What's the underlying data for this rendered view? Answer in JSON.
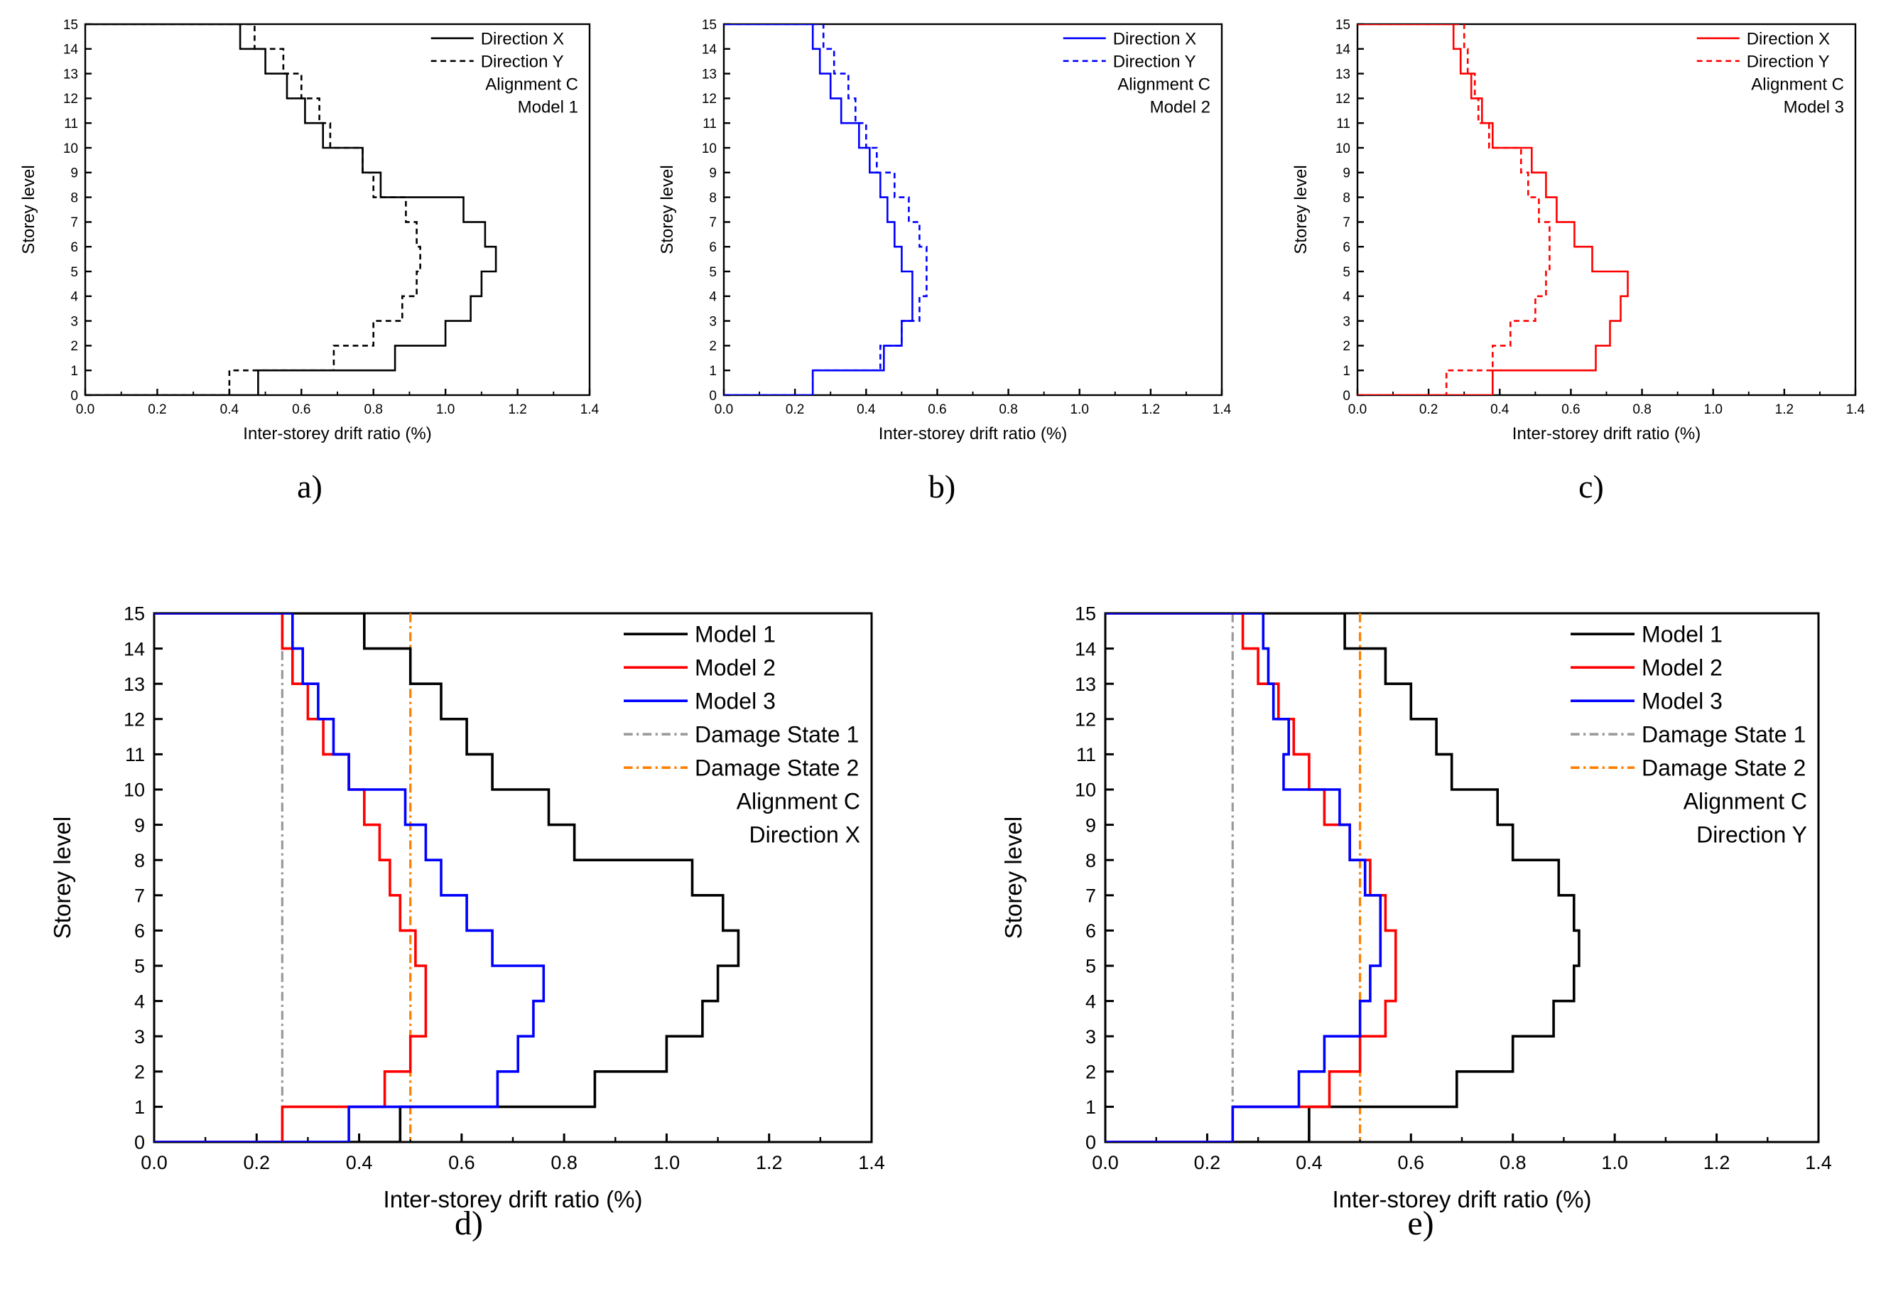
{
  "figure": {
    "captions": [
      "a)",
      "b)",
      "c)",
      "d)",
      "e)"
    ]
  },
  "chart_data": [
    {
      "type": "line",
      "panel_id": "a",
      "xlabel": "Inter-storey drift ratio (%)",
      "ylabel": "Storey level",
      "xlim": [
        0,
        1.4
      ],
      "ylim": [
        0,
        15
      ],
      "xticks": [
        "0.0",
        "0.2",
        "0.4",
        "0.6",
        "0.8",
        "1.0",
        "1.2",
        "1.4"
      ],
      "yticks": [
        "0",
        "1",
        "2",
        "3",
        "4",
        "5",
        "6",
        "7",
        "8",
        "9",
        "10",
        "11",
        "12",
        "13",
        "14",
        "15"
      ],
      "legend_position": "top-right",
      "annotations": [
        "Alignment C",
        "Model 1"
      ],
      "series": [
        {
          "name": "Direction X",
          "color": "#000000",
          "dash": "solid",
          "values": [
            0.48,
            0.86,
            1.0,
            1.07,
            1.1,
            1.14,
            1.11,
            1.05,
            0.82,
            0.77,
            0.66,
            0.61,
            0.56,
            0.5,
            0.43
          ]
        },
        {
          "name": "Direction Y",
          "color": "#000000",
          "dash": "dashed",
          "values": [
            0.4,
            0.69,
            0.8,
            0.88,
            0.92,
            0.93,
            0.92,
            0.89,
            0.8,
            0.77,
            0.68,
            0.65,
            0.6,
            0.55,
            0.47
          ]
        }
      ]
    },
    {
      "type": "line",
      "panel_id": "b",
      "xlabel": "Inter-storey drift ratio (%)",
      "ylabel": "Storey level",
      "xlim": [
        0,
        1.4
      ],
      "ylim": [
        0,
        15
      ],
      "xticks": [
        "0.0",
        "0.2",
        "0.4",
        "0.6",
        "0.8",
        "1.0",
        "1.2",
        "1.4"
      ],
      "yticks": [
        "0",
        "1",
        "2",
        "3",
        "4",
        "5",
        "6",
        "7",
        "8",
        "9",
        "10",
        "11",
        "12",
        "13",
        "14",
        "15"
      ],
      "legend_position": "top-right",
      "annotations": [
        "Alignment C",
        "Model 2"
      ],
      "series": [
        {
          "name": "Direction X",
          "color": "#0000ff",
          "dash": "solid",
          "values": [
            0.25,
            0.45,
            0.5,
            0.53,
            0.53,
            0.5,
            0.48,
            0.46,
            0.44,
            0.41,
            0.38,
            0.33,
            0.3,
            0.27,
            0.25
          ]
        },
        {
          "name": "Direction Y",
          "color": "#0000ff",
          "dash": "dashed",
          "values": [
            0.25,
            0.44,
            0.5,
            0.55,
            0.57,
            0.57,
            0.55,
            0.52,
            0.48,
            0.43,
            0.4,
            0.37,
            0.35,
            0.31,
            0.28
          ]
        }
      ]
    },
    {
      "type": "line",
      "panel_id": "c",
      "xlabel": "Inter-storey drift ratio (%)",
      "ylabel": "Storey level",
      "xlim": [
        0,
        1.4
      ],
      "ylim": [
        0,
        15
      ],
      "xticks": [
        "0.0",
        "0.2",
        "0.4",
        "0.6",
        "0.8",
        "1.0",
        "1.2",
        "1.4"
      ],
      "yticks": [
        "0",
        "1",
        "2",
        "3",
        "4",
        "5",
        "6",
        "7",
        "8",
        "9",
        "10",
        "11",
        "12",
        "13",
        "14",
        "15"
      ],
      "legend_position": "top-right",
      "annotations": [
        "Alignment C",
        "Model 3"
      ],
      "series": [
        {
          "name": "Direction X",
          "color": "#ff0000",
          "dash": "solid",
          "values": [
            0.38,
            0.67,
            0.71,
            0.74,
            0.76,
            0.66,
            0.61,
            0.56,
            0.53,
            0.49,
            0.38,
            0.35,
            0.32,
            0.29,
            0.27
          ]
        },
        {
          "name": "Direction Y",
          "color": "#ff0000",
          "dash": "dashed",
          "values": [
            0.25,
            0.38,
            0.43,
            0.5,
            0.53,
            0.54,
            0.54,
            0.51,
            0.48,
            0.46,
            0.37,
            0.34,
            0.33,
            0.31,
            0.3
          ]
        }
      ]
    },
    {
      "type": "line",
      "panel_id": "d",
      "xlabel": "Inter-storey drift ratio (%)",
      "ylabel": "Storey level",
      "xlim": [
        0,
        1.4
      ],
      "ylim": [
        0,
        15
      ],
      "xticks": [
        "0.0",
        "0.2",
        "0.4",
        "0.6",
        "0.8",
        "1.0",
        "1.2",
        "1.4"
      ],
      "yticks": [
        "0",
        "1",
        "2",
        "3",
        "4",
        "5",
        "6",
        "7",
        "8",
        "9",
        "10",
        "11",
        "12",
        "13",
        "14",
        "15"
      ],
      "legend_position": "top-right",
      "annotations": [
        "Alignment C",
        "Direction X"
      ],
      "series": [
        {
          "name": "Model 1",
          "color": "#000000",
          "dash": "solid",
          "values": [
            0.48,
            0.86,
            1.0,
            1.07,
            1.1,
            1.14,
            1.11,
            1.05,
            0.82,
            0.77,
            0.66,
            0.61,
            0.56,
            0.5,
            0.41
          ]
        },
        {
          "name": "Model 2",
          "color": "#ff0000",
          "dash": "solid",
          "values": [
            0.25,
            0.45,
            0.5,
            0.53,
            0.53,
            0.51,
            0.48,
            0.46,
            0.44,
            0.41,
            0.38,
            0.33,
            0.3,
            0.27,
            0.25
          ]
        },
        {
          "name": "Model 3",
          "color": "#0000ff",
          "dash": "solid",
          "values": [
            0.38,
            0.67,
            0.71,
            0.74,
            0.76,
            0.66,
            0.61,
            0.56,
            0.53,
            0.49,
            0.38,
            0.35,
            0.32,
            0.29,
            0.27
          ]
        }
      ],
      "reference_lines": [
        {
          "name": "Damage State 1",
          "x": 0.25,
          "color": "#9a9a9a",
          "dash": "dashdot"
        },
        {
          "name": "Damage State 2",
          "x": 0.5,
          "color": "#ff7f00",
          "dash": "dashdot"
        }
      ]
    },
    {
      "type": "line",
      "panel_id": "e",
      "xlabel": "Inter-storey drift ratio (%)",
      "ylabel": "Storey level",
      "xlim": [
        0,
        1.4
      ],
      "ylim": [
        0,
        15
      ],
      "xticks": [
        "0.0",
        "0.2",
        "0.4",
        "0.6",
        "0.8",
        "1.0",
        "1.2",
        "1.4"
      ],
      "yticks": [
        "0",
        "1",
        "2",
        "3",
        "4",
        "5",
        "6",
        "7",
        "8",
        "9",
        "10",
        "11",
        "12",
        "13",
        "14",
        "15"
      ],
      "legend_position": "top-right",
      "annotations": [
        "Alignment C",
        "Direction Y"
      ],
      "series": [
        {
          "name": "Model 1",
          "color": "#000000",
          "dash": "solid",
          "values": [
            0.4,
            0.69,
            0.8,
            0.88,
            0.92,
            0.93,
            0.92,
            0.89,
            0.8,
            0.77,
            0.68,
            0.65,
            0.6,
            0.55,
            0.47
          ]
        },
        {
          "name": "Model 2",
          "color": "#ff0000",
          "dash": "solid",
          "values": [
            0.25,
            0.44,
            0.5,
            0.55,
            0.57,
            0.57,
            0.55,
            0.52,
            0.48,
            0.43,
            0.4,
            0.37,
            0.34,
            0.3,
            0.27
          ]
        },
        {
          "name": "Model 3",
          "color": "#0000ff",
          "dash": "solid",
          "values": [
            0.25,
            0.38,
            0.43,
            0.5,
            0.52,
            0.54,
            0.54,
            0.51,
            0.48,
            0.46,
            0.35,
            0.36,
            0.33,
            0.32,
            0.31
          ]
        }
      ],
      "reference_lines": [
        {
          "name": "Damage State 1",
          "x": 0.25,
          "color": "#9a9a9a",
          "dash": "dashdot"
        },
        {
          "name": "Damage State 2",
          "x": 0.5,
          "color": "#ff7f00",
          "dash": "dashdot"
        }
      ]
    }
  ]
}
